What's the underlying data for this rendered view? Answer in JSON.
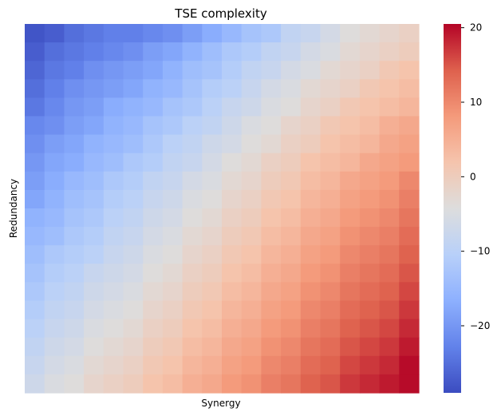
{
  "chart_data": {
    "type": "heatmap",
    "title": "TSE complexity",
    "xlabel": "Synergy",
    "ylabel": "Redundancy",
    "colormap": "coolwarm",
    "vmin": -29,
    "vmax": 20.5,
    "colorbar_ticks": [
      -20,
      -10,
      0,
      10,
      20
    ],
    "colorbar_tick_labels": [
      "−20",
      "−10",
      "0",
      "10",
      "20"
    ],
    "show_x_ticks": false,
    "show_y_ticks": false,
    "rows": 20,
    "cols": 20,
    "values": [
      [
        -28,
        -27,
        -25,
        -24,
        -23,
        -23,
        -22,
        -21,
        -19,
        -17,
        -15,
        -13,
        -12,
        -9,
        -8,
        -6,
        -4,
        -3,
        -2,
        -1
      ],
      [
        -27,
        -25,
        -24,
        -23,
        -22,
        -21,
        -19,
        -18,
        -16,
        -14,
        -12,
        -11,
        -9,
        -8,
        -6,
        -5,
        -3,
        -2,
        -1,
        0
      ],
      [
        -26,
        -24,
        -23,
        -21,
        -20,
        -19,
        -18,
        -16,
        -14,
        -13,
        -11,
        -9,
        -8,
        -6,
        -5,
        -3,
        -2,
        -1,
        1,
        2
      ],
      [
        -25,
        -23,
        -21,
        -20,
        -19,
        -18,
        -16,
        -15,
        -13,
        -11,
        -10,
        -8,
        -6,
        -5,
        -3,
        -2,
        -1,
        1,
        2,
        3
      ],
      [
        -24,
        -22,
        -20,
        -19,
        -17,
        -16,
        -15,
        -13,
        -12,
        -10,
        -8,
        -7,
        -5,
        -4,
        -2,
        -1,
        1,
        2,
        3,
        4
      ],
      [
        -22,
        -21,
        -19,
        -18,
        -16,
        -15,
        -13,
        -12,
        -10,
        -9,
        -7,
        -5,
        -4,
        -2,
        -1,
        1,
        2,
        3,
        5,
        6
      ],
      [
        -21,
        -19,
        -18,
        -16,
        -15,
        -14,
        -12,
        -10,
        -9,
        -7,
        -6,
        -4,
        -3,
        -1,
        0,
        2,
        3,
        4,
        6,
        7
      ],
      [
        -20,
        -18,
        -17,
        -15,
        -14,
        -12,
        -11,
        -9,
        -8,
        -6,
        -4,
        -3,
        -1,
        0,
        2,
        3,
        4,
        6,
        7,
        8
      ],
      [
        -19,
        -17,
        -15,
        -14,
        -12,
        -11,
        -9,
        -8,
        -6,
        -5,
        -3,
        -2,
        0,
        1,
        3,
        4,
        6,
        7,
        8,
        10
      ],
      [
        -18,
        -16,
        -14,
        -13,
        -11,
        -10,
        -8,
        -7,
        -5,
        -4,
        -2,
        -1,
        1,
        2,
        4,
        5,
        7,
        8,
        9,
        11
      ],
      [
        -16,
        -15,
        -13,
        -12,
        -10,
        -9,
        -7,
        -6,
        -4,
        -3,
        -1,
        0,
        2,
        3,
        5,
        6,
        8,
        9,
        10,
        12
      ],
      [
        -15,
        -14,
        -12,
        -11,
        -9,
        -8,
        -6,
        -5,
        -3,
        -2,
        0,
        1,
        3,
        4,
        6,
        7,
        9,
        10,
        11,
        13
      ],
      [
        -14,
        -12,
        -11,
        -10,
        -8,
        -7,
        -5,
        -4,
        -2,
        -1,
        1,
        2,
        4,
        5,
        7,
        8,
        10,
        11,
        12,
        14
      ],
      [
        -13,
        -11,
        -10,
        -8,
        -7,
        -6,
        -4,
        -3,
        -1,
        0,
        2,
        3,
        5,
        6,
        8,
        9,
        11,
        12,
        13,
        15
      ],
      [
        -12,
        -10,
        -9,
        -7,
        -6,
        -5,
        -3,
        -2,
        0,
        1,
        3,
        4,
        6,
        7,
        9,
        10,
        12,
        13,
        14,
        16
      ],
      [
        -11,
        -9,
        -8,
        -6,
        -5,
        -4,
        -2,
        -1,
        1,
        2,
        4,
        5,
        7,
        8,
        10,
        11,
        13,
        14,
        15,
        17
      ],
      [
        -10,
        -8,
        -7,
        -5,
        -4,
        -3,
        -1,
        0,
        2,
        3,
        5,
        6,
        8,
        9,
        11,
        12,
        14,
        15,
        16,
        18
      ],
      [
        -9,
        -7,
        -6,
        -4,
        -3,
        -2,
        0,
        1,
        3,
        4,
        6,
        7,
        9,
        10,
        12,
        13,
        15,
        16,
        17,
        19
      ],
      [
        -8,
        -6,
        -5,
        -3,
        -2,
        -1,
        1,
        2,
        4,
        5,
        7,
        8,
        10,
        11,
        13,
        14,
        16,
        17,
        18,
        20
      ],
      [
        -7,
        -5,
        -4,
        -2,
        -1,
        0,
        2,
        3,
        5,
        6,
        8,
        9,
        11,
        12,
        14,
        15,
        17,
        18,
        19,
        20
      ]
    ]
  }
}
